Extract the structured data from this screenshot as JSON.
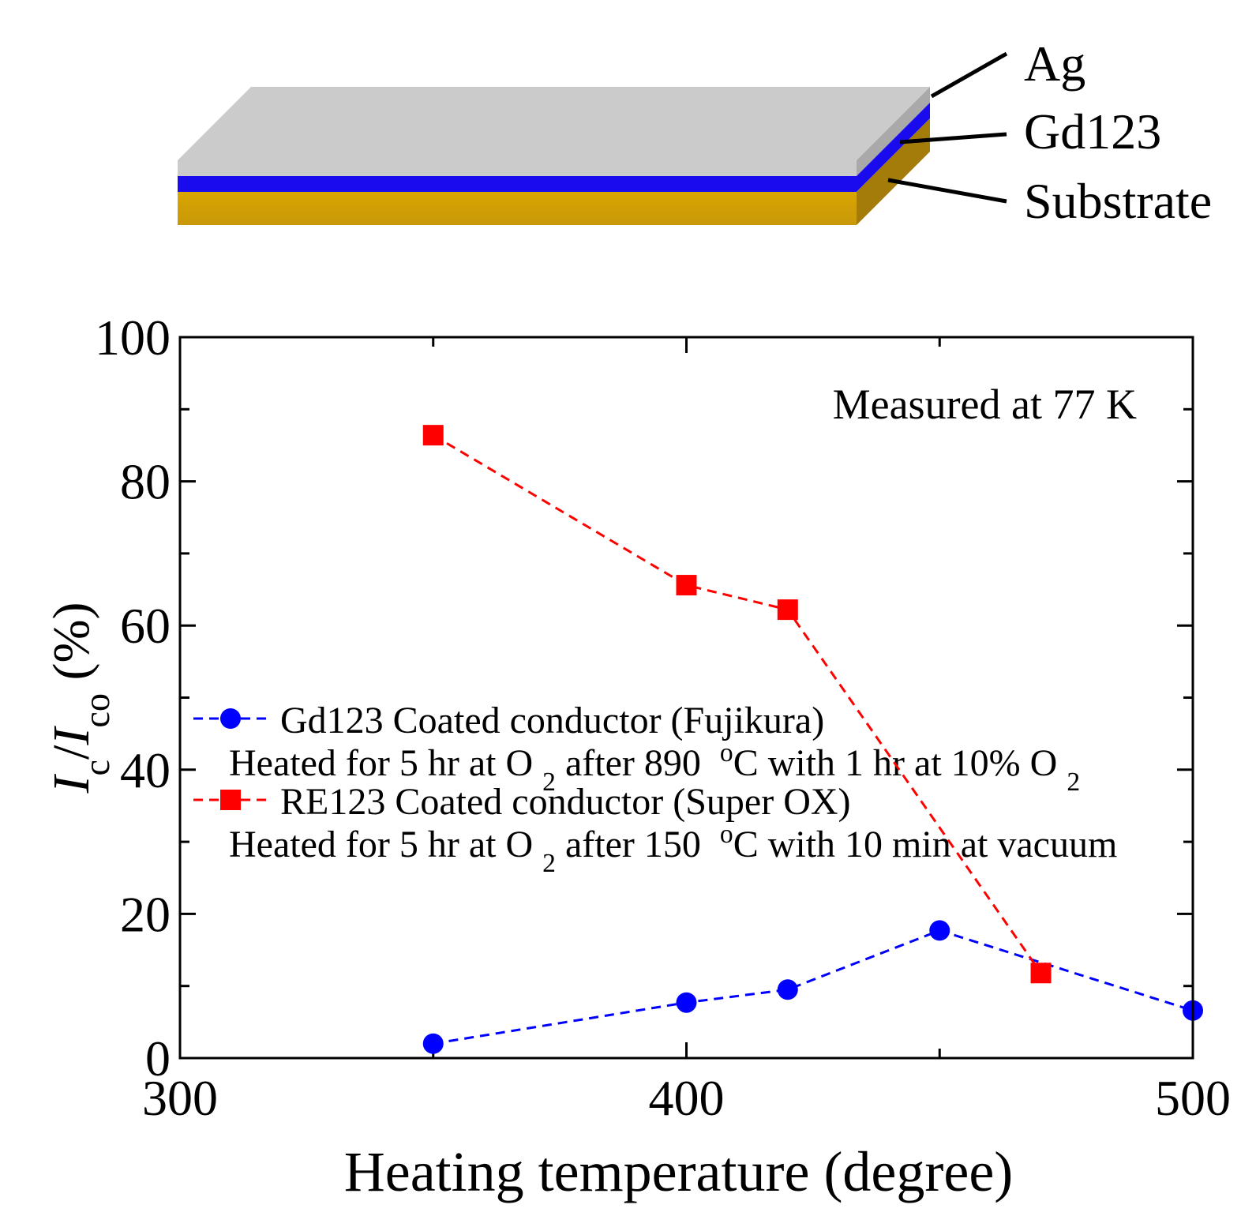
{
  "diagram": {
    "labels": [
      "Ag",
      "Gd123",
      "Substrate"
    ]
  },
  "chart_data": {
    "type": "line",
    "annotation": "Measured at 77 K",
    "xlabel": "Heating temperature (degree)",
    "ylabel": [
      {
        "text": "I",
        "style": "italic"
      },
      {
        "text": "c",
        "style": "sub"
      },
      {
        "text": "/",
        "style": "normal"
      },
      {
        "text": "I",
        "style": "italic"
      },
      {
        "text": "co",
        "style": "sub"
      },
      {
        "text": " (%)",
        "style": "normal"
      }
    ],
    "xlim": [
      300,
      500
    ],
    "ylim": [
      0,
      100
    ],
    "xticks": [
      300,
      400,
      500
    ],
    "xminorticks": [
      350,
      450
    ],
    "yticks": [
      0,
      20,
      40,
      60,
      80,
      100
    ],
    "yminorticks": [
      10,
      30,
      50,
      70,
      90
    ],
    "series": [
      {
        "name": "Gd123 Coated conductor (Fujikura)",
        "color": "#0000ff",
        "marker": "circle",
        "description": [
          {
            "text": "Heated for 5 hr at O ",
            "style": "normal"
          },
          {
            "text": "2",
            "style": "sub"
          },
          {
            "text": " after 890  ",
            "style": "normal"
          },
          {
            "text": "o",
            "style": "sup"
          },
          {
            "text": "C with 1 hr at 10% O ",
            "style": "normal"
          },
          {
            "text": "2",
            "style": "sub"
          }
        ],
        "x": [
          350,
          400,
          420,
          450,
          500
        ],
        "values": [
          2.0,
          7.7,
          9.5,
          17.7,
          6.6
        ]
      },
      {
        "name": "RE123 Coated conductor (Super OX)",
        "color": "#ff0000",
        "marker": "square",
        "description": [
          {
            "text": "Heated for 5 hr at O ",
            "style": "normal"
          },
          {
            "text": "2",
            "style": "sub"
          },
          {
            "text": " after 150  ",
            "style": "normal"
          },
          {
            "text": "o",
            "style": "sup"
          },
          {
            "text": "C with 10 min at vacuum",
            "style": "normal"
          }
        ],
        "x": [
          350,
          400,
          420,
          470
        ],
        "values": [
          86.4,
          65.6,
          62.2,
          11.8
        ]
      }
    ]
  }
}
